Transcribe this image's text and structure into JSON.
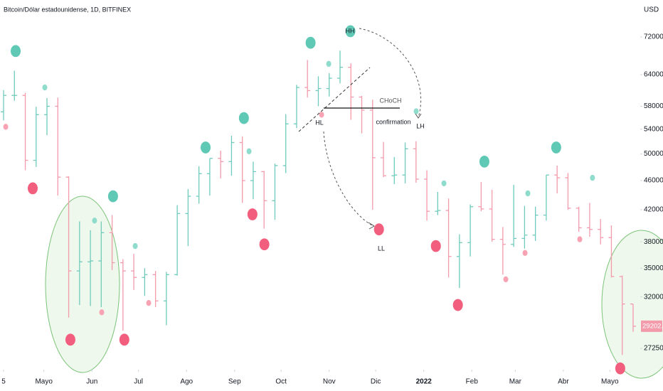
{
  "chart_data": {
    "type": "ohlc",
    "title": "Bitcoin/Dólar estadounidense, 1D, BITFINEX",
    "currency": "USD",
    "log_scale": true,
    "grid": false,
    "up_color": "#6fcbbd",
    "down_color": "#f39aab",
    "x": [
      4,
      11,
      18,
      25,
      32,
      39,
      46,
      53,
      60,
      67,
      74,
      81,
      88,
      95,
      102,
      109,
      116,
      123,
      130,
      137,
      144,
      151,
      158,
      165,
      172,
      179,
      186,
      193,
      200,
      207,
      214,
      221,
      228,
      235,
      242,
      249,
      256,
      263,
      270,
      277,
      284,
      291,
      298,
      305,
      312,
      319,
      326,
      333,
      340,
      347,
      354,
      361,
      368,
      375,
      382,
      389,
      396,
      403,
      410
    ],
    "open": [
      57000,
      60000,
      60000,
      49000,
      56500,
      58000,
      46500,
      34700,
      35700,
      35800,
      39100,
      35600,
      34700,
      34000,
      34300,
      31600,
      34300,
      41500,
      43800,
      47000,
      49300,
      48800,
      51800,
      46000,
      47300,
      43200,
      48200,
      54900,
      61500,
      60900,
      61300,
      63300,
      65500,
      59700,
      57300,
      49400,
      46700,
      46800,
      50800,
      46200,
      41800,
      41900,
      36300,
      37900,
      42400,
      42100,
      38300,
      37700,
      38400,
      38800,
      41300,
      46800,
      46400,
      42200,
      39700,
      39500,
      38500,
      34100,
      31300
    ],
    "high": [
      61000,
      64800,
      60500,
      57900,
      59500,
      59600,
      46600,
      40500,
      39400,
      40500,
      41300,
      36000,
      36600,
      35000,
      34700,
      34600,
      42600,
      44800,
      48100,
      49300,
      50500,
      52900,
      52800,
      48800,
      47400,
      48500,
      56600,
      62000,
      67000,
      63700,
      64300,
      69000,
      66300,
      59900,
      59200,
      51900,
      49500,
      51800,
      52000,
      47500,
      44400,
      43500,
      38900,
      42700,
      45800,
      44700,
      39800,
      45400,
      42500,
      42400,
      46800,
      48200,
      47100,
      42400,
      42900,
      40800,
      40000,
      34200,
      31300
    ],
    "low": [
      55500,
      59000,
      47500,
      48000,
      53000,
      43900,
      30000,
      31200,
      31100,
      31000,
      34800,
      28800,
      32700,
      32100,
      31000,
      29300,
      34200,
      37500,
      42800,
      43900,
      46300,
      46700,
      42900,
      43400,
      39600,
      40700,
      47100,
      54200,
      59600,
      58000,
      59800,
      62300,
      55600,
      53300,
      42000,
      46500,
      45500,
      45600,
      45700,
      40600,
      41300,
      34000,
      32900,
      36300,
      41800,
      38000,
      34300,
      37400,
      37200,
      38100,
      40600,
      44200,
      42000,
      39200,
      38600,
      37700,
      34000,
      26700,
      28700
    ],
    "close": [
      60000,
      60000,
      49000,
      56500,
      58000,
      46500,
      34700,
      35700,
      35800,
      39100,
      35600,
      34700,
      34000,
      34300,
      31600,
      34300,
      41500,
      43800,
      47000,
      49300,
      48800,
      51800,
      46000,
      47300,
      43200,
      48200,
      54900,
      61500,
      60900,
      61300,
      63300,
      65500,
      59700,
      57300,
      49400,
      46700,
      46800,
      50800,
      46200,
      41800,
      41900,
      36300,
      37900,
      42400,
      42100,
      38300,
      37700,
      38400,
      38800,
      41300,
      46800,
      46400,
      42200,
      39700,
      39500,
      38500,
      34100,
      31300,
      29202.3
    ],
    "pivots": [
      {
        "color": "#5fc9b6",
        "size": 7,
        "x": [
          11.8,
          74.6,
          134.3,
          159,
          202,
          227.7,
          314.1,
          360.4
        ],
        "values": [
          68900,
          43800,
          51000,
          55900,
          70700,
          73300,
          48800,
          51000
        ]
      },
      {
        "color": "#f25e7d",
        "size": 7,
        "x": [
          22.8,
          47.1,
          81.9,
          164.5,
          172.2,
          246.1,
          282.8,
          297,
          401.7
        ],
        "values": [
          44900,
          28000,
          28000,
          41400,
          37700,
          39500,
          37500,
          31200,
          25600
        ]
      },
      {
        "color": "#8fdccd",
        "size": 3.5,
        "x": [
          30.6,
          62.7,
          88.9,
          162.3,
          213.7,
          270.1,
          288,
          342.1,
          383.8
        ],
        "values": [
          61500,
          40600,
          37500,
          50400,
          66200,
          57100,
          45600,
          44200,
          46400
        ]
      },
      {
        "color": "#f7a3b3",
        "size": 3.5,
        "x": [
          5.4,
          67.3,
          97.6,
          209.1,
          327.9,
          340.3,
          375.6
        ],
        "values": [
          54400,
          30500,
          31400,
          56500,
          33800,
          36700,
          38300
        ]
      }
    ],
    "xlim": [
      1.7,
      414.6
    ],
    "xticks": [
      {
        "value": 4,
        "label": "5"
      },
      {
        "value": 30,
        "label": "Mayo"
      },
      {
        "value": 61,
        "label": "Jun"
      },
      {
        "value": 91,
        "label": "Jul"
      },
      {
        "value": 122,
        "label": "Ago"
      },
      {
        "value": 153,
        "label": "Sep"
      },
      {
        "value": 183,
        "label": "Oct"
      },
      {
        "value": 214,
        "label": "Nov"
      },
      {
        "value": 244,
        "label": "Dic"
      },
      {
        "value": 275,
        "label": "2022"
      },
      {
        "value": 306,
        "label": "Feb"
      },
      {
        "value": 334,
        "label": "Mar"
      },
      {
        "value": 365,
        "label": "Abr"
      },
      {
        "value": 395,
        "label": "Mayo"
      }
    ],
    "ylim": [
      25500,
      80800
    ],
    "yticks": [
      {
        "value": 27250,
        "label": "27250.0"
      },
      {
        "value": 32000,
        "label": "32000.0"
      },
      {
        "value": 35000,
        "label": "35000.0"
      },
      {
        "value": 38000,
        "label": "38000.0"
      },
      {
        "value": 42000,
        "label": "42000.0"
      },
      {
        "value": 46000,
        "label": "46000.0"
      },
      {
        "value": 50000,
        "label": "50000.0"
      },
      {
        "value": 54000,
        "label": "54000.0"
      },
      {
        "value": 58000,
        "label": "58000.0"
      },
      {
        "value": 64000,
        "label": "64000.0"
      },
      {
        "value": 72000,
        "label": "72000.0"
      }
    ],
    "annotations": [
      "HH",
      "HL",
      "LH",
      "LL",
      "CHoCH",
      "confirmation"
    ]
  }
}
